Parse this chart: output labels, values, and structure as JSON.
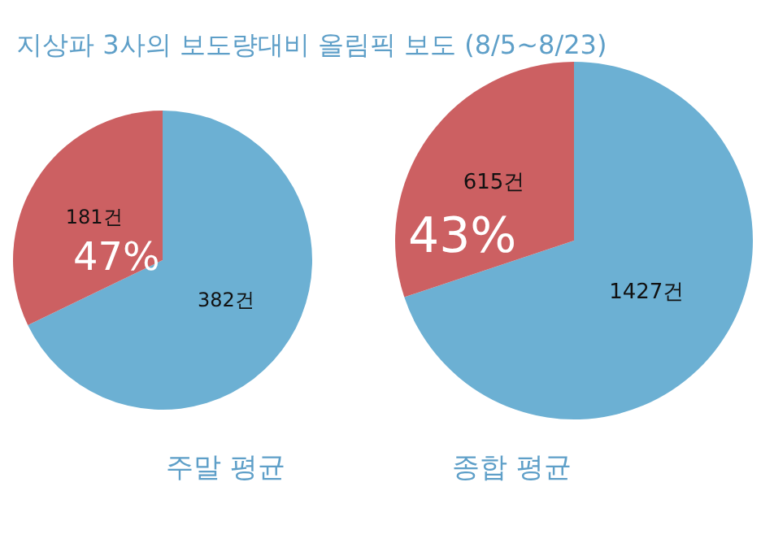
{
  "chart_data": [
    {
      "type": "pie",
      "title": "지상파 3사의 보도량대비 올림픽 보도 (8/5~8/23)",
      "xlabel": "주말 평균",
      "categories": [
        null,
        null
      ],
      "values": [
        382,
        181
      ],
      "colors": [
        "#6cb0d3",
        "#cc6062"
      ],
      "value_labels": [
        "382건",
        "181건"
      ],
      "annotations": [
        "47%"
      ]
    },
    {
      "type": "pie",
      "xlabel": "종합 평균",
      "categories": [
        null,
        null
      ],
      "values": [
        1427,
        615
      ],
      "colors": [
        "#6cb0d3",
        "#cc6062"
      ],
      "value_labels": [
        "1427건",
        "615건"
      ],
      "annotations": [
        "43%"
      ]
    }
  ]
}
